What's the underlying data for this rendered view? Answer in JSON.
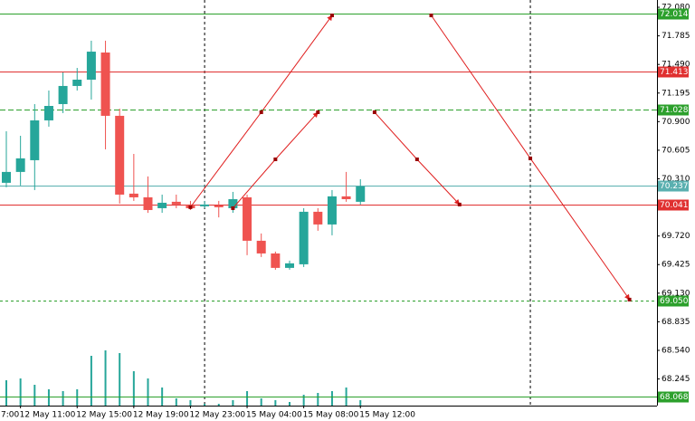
{
  "chart_data": {
    "type": "candlestick",
    "ylim": [
      67.97,
      72.155
    ],
    "yticks": [
      {
        "value": 72.08,
        "label": "72.080"
      },
      71.785,
      {
        "value": 71.49,
        "label": "71.490"
      },
      71.195,
      {
        "value": 70.9,
        "label": "70.900"
      },
      70.605,
      {
        "value": 70.31,
        "label": "70.310"
      },
      {
        "value": 69.72,
        "label": "69.720"
      },
      69.425,
      {
        "value": 69.13,
        "label": "69.130"
      },
      68.835,
      {
        "value": 68.54,
        "label": "68.540"
      },
      68.245
    ],
    "xticks": [
      {
        "value": -3,
        "label": "7:00"
      },
      {
        "value": 1,
        "label": "12 May 11:00"
      },
      {
        "value": 5,
        "label": "12 May 15:00"
      },
      {
        "value": 9,
        "label": "12 May 19:00"
      },
      {
        "value": 13,
        "label": "12 May 23:00"
      },
      {
        "value": 17,
        "label": "15 May 04:00"
      },
      {
        "value": 21,
        "label": "15 May 08:00"
      },
      {
        "value": 25,
        "label": "15 May 12:00"
      }
    ],
    "up_color": "#26a69a",
    "down_color": "#ef5350",
    "open": [
      70.269,
      70.381,
      70.502,
      70.913,
      71.081,
      71.268,
      71.333,
      71.613,
      70.96,
      70.157,
      70.119,
      70.007,
      70.073,
      70.045,
      70.026,
      70.035,
      70.007,
      70.119,
      69.671,
      69.54,
      69.391,
      69.428,
      69.97,
      69.839,
      70.129,
      70.073
    ],
    "high": [
      70.801,
      70.754,
      71.081,
      71.221,
      71.408,
      71.454,
      71.735,
      71.735,
      71.034,
      70.567,
      70.334,
      70.147,
      70.147,
      70.082,
      70.082,
      70.082,
      70.175,
      70.147,
      69.746,
      69.559,
      69.466,
      70.007,
      70.007,
      70.194,
      70.381,
      70.306
    ],
    "low": [
      70.222,
      70.241,
      70.194,
      70.848,
      70.988,
      71.221,
      71.128,
      70.614,
      70.054,
      70.082,
      69.959,
      69.959,
      70.007,
      69.988,
      70.007,
      69.912,
      69.959,
      69.522,
      69.503,
      69.372,
      69.372,
      69.4,
      69.774,
      69.727,
      70.073,
      70.045
    ],
    "close": [
      70.381,
      70.521,
      70.913,
      71.062,
      71.268,
      71.333,
      71.622,
      70.96,
      70.147,
      70.119,
      69.988,
      70.063,
      70.045,
      70.007,
      70.045,
      70.017,
      70.1,
      69.671,
      69.54,
      69.391,
      69.438,
      69.97,
      69.839,
      70.129,
      70.1,
      70.231
    ],
    "volumes": [
      28,
      30,
      23,
      18,
      16,
      18,
      55,
      61,
      58,
      38,
      30,
      20,
      8,
      6,
      2,
      2,
      6,
      16,
      8,
      6,
      4,
      12,
      14,
      16,
      20,
      6
    ],
    "volume_color": "#26a69a",
    "levels": [
      {
        "price": 72.014,
        "color": "#2ca02c",
        "dash": "none"
      },
      {
        "price": 71.413,
        "color": "#e03030",
        "dash": "none"
      },
      {
        "price": 71.028,
        "color": "#2ca02c",
        "dash": "6 3"
      },
      {
        "price": 70.237,
        "color": "#5ab0b0",
        "dash": "none"
      },
      {
        "price": 70.041,
        "color": "#e03030",
        "dash": "none"
      },
      {
        "price": {
          "value": 69.05,
          "label": "69.050"
        },
        "color": "#2ca02c",
        "dash": "3 3"
      },
      {
        "price": 68.068,
        "color": "#2ca02c",
        "dash": "none"
      }
    ],
    "arrows": [
      {
        "x": [
          13,
          18,
          23
        ],
        "y": [
          70.017,
          70.997,
          71.996
        ],
        "color": "#e02020"
      },
      {
        "x": [
          16,
          19,
          22
        ],
        "y": [
          70.007,
          70.511,
          70.997
        ],
        "color": "#e02020"
      },
      {
        "x": [
          26,
          29,
          32
        ],
        "y": [
          70.997,
          70.511,
          70.045
        ],
        "color": "#e02020"
      },
      {
        "x": [
          30,
          37,
          44
        ],
        "y": [
          71.996,
          70.521,
          69.064
        ],
        "color": "#e02020"
      }
    ],
    "separators": [
      14,
      37
    ]
  }
}
